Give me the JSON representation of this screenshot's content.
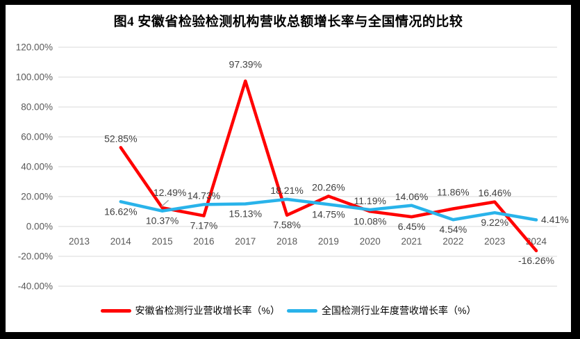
{
  "title": "图4 安徽省检验检测机构营收总额增长率与全国情况的比较",
  "colors": {
    "anhui_red": "#FF0000",
    "national_blue": "#29B3EA",
    "gridline": "#D9D9D9",
    "axis_text": "#595959",
    "label_text": "#3F3F3F",
    "leader": "#A6A6A6",
    "background": "#FFFFFF",
    "frame": "#000000"
  },
  "chart_data": {
    "type": "line",
    "title": "图4 安徽省检验检测机构营收总额增长率与全国情况的比较",
    "categories": [
      "2013",
      "2014",
      "2015",
      "2016",
      "2017",
      "2018",
      "2019",
      "2020",
      "2021",
      "2022",
      "2023",
      "2024"
    ],
    "xlabel": "",
    "ylabel": "",
    "ylim": [
      -40,
      120
    ],
    "grid": true,
    "legend_position": "bottom",
    "y_axis": {
      "tick_values": [
        120,
        100,
        80,
        60,
        40,
        20,
        0,
        -20,
        -40
      ],
      "tick_labels": [
        "120.00%",
        "100.00%",
        "80.00%",
        "60.00%",
        "40.00%",
        "20.00%",
        "0.00%",
        "-20.00%",
        "-40.00%"
      ]
    },
    "series": [
      {
        "name": "安徽省检测行业营收增长率（%）",
        "color": "#FF0000",
        "values": [
          null,
          52.85,
          12.49,
          7.17,
          97.39,
          7.58,
          20.26,
          10.08,
          6.45,
          11.86,
          16.46,
          -16.26
        ],
        "labels": [
          "",
          "52.85%",
          "12.49%",
          "7.17%",
          "97.39%",
          "7.58%",
          "20.26%",
          "10.08%",
          "6.45%",
          "11.86%",
          "16.46%",
          "-16.26%"
        ],
        "label_side": [
          "",
          "above",
          "leader",
          "below",
          "above-far",
          "below",
          "above",
          "below",
          "below",
          "above-far",
          "above",
          "below"
        ]
      },
      {
        "name": "全国检测行业年度营收增长率（%）",
        "color": "#29B3EA",
        "values": [
          null,
          16.62,
          10.37,
          14.73,
          15.13,
          18.21,
          14.75,
          11.19,
          14.06,
          4.54,
          9.22,
          4.41
        ],
        "labels": [
          "",
          "16.62%",
          "10.37%",
          "14.73%",
          "15.13%",
          "18.21%",
          "14.75%",
          "11.19%",
          "14.06%",
          "4.54%",
          "9.22%",
          "4.41%"
        ],
        "label_side": [
          "",
          "below",
          "below",
          "above",
          "below",
          "above",
          "below",
          "above",
          "above",
          "below",
          "below",
          "right"
        ]
      }
    ]
  }
}
